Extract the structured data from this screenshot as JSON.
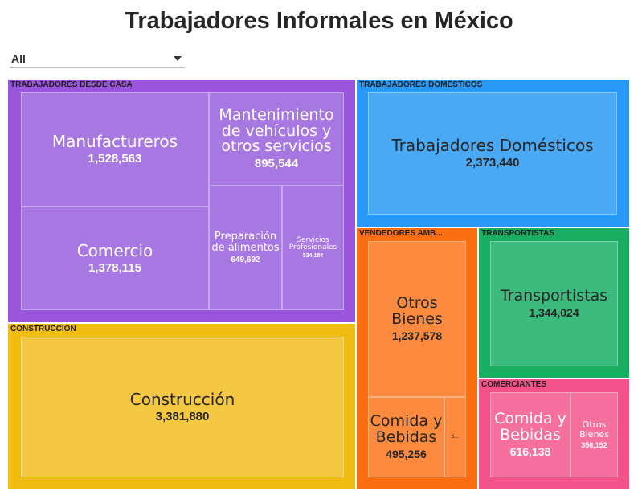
{
  "title": "Trabajadores Informales en México",
  "filter": {
    "selected": "All"
  },
  "chart_data": {
    "type": "treemap",
    "groups": [
      {
        "name": "TRABAJADORES DESDE CASA",
        "color": "#9a55dd",
        "leaf_color": "#a878e2",
        "leaves": [
          {
            "name": "Manufactureros",
            "value": "1,528,563"
          },
          {
            "name": "Comercio",
            "value": "1,378,115"
          },
          {
            "name": "Mantenimiento de vehículos y otros servicios",
            "value": "895,544"
          },
          {
            "name": "Preparación de alimentos",
            "value": "649,692"
          },
          {
            "name": "Servicios Profesionales",
            "value": "534,184"
          }
        ]
      },
      {
        "name": "TRABAJADORES DOMÉSTICOS",
        "color": "#2798f6",
        "leaf_color": "#4aa9f5",
        "leaves": [
          {
            "name": "Trabajadores Domésticos",
            "value": "2,373,440"
          }
        ]
      },
      {
        "name": "CONSTRUCCIÓN",
        "color": "#f1bd12",
        "leaf_color": "#f4c842",
        "leaves": [
          {
            "name": "Construcción",
            "value": "3,381,880"
          }
        ]
      },
      {
        "name": "VENDEDORES AMB...",
        "color": "#fb6e11",
        "leaf_color": "#fb8a3e",
        "leaves": [
          {
            "name": "Otros Bienes",
            "value": "1,237,578"
          },
          {
            "name": "Comida y Bebidas",
            "value": "495,256"
          },
          {
            "name": "S...",
            "value": ""
          }
        ]
      },
      {
        "name": "TRANSPORTISTAS",
        "color": "#19ad62",
        "leaf_color": "#3dba7e",
        "leaves": [
          {
            "name": "Transportistas",
            "value": "1,344,024"
          }
        ]
      },
      {
        "name": "COMERCIANTES",
        "color": "#f4528b",
        "leaf_color": "#f5709f",
        "leaves": [
          {
            "name": "Comida y Bebidas",
            "value": "616,138"
          },
          {
            "name": "Otros Bienes",
            "value": "356,152"
          }
        ]
      }
    ]
  }
}
